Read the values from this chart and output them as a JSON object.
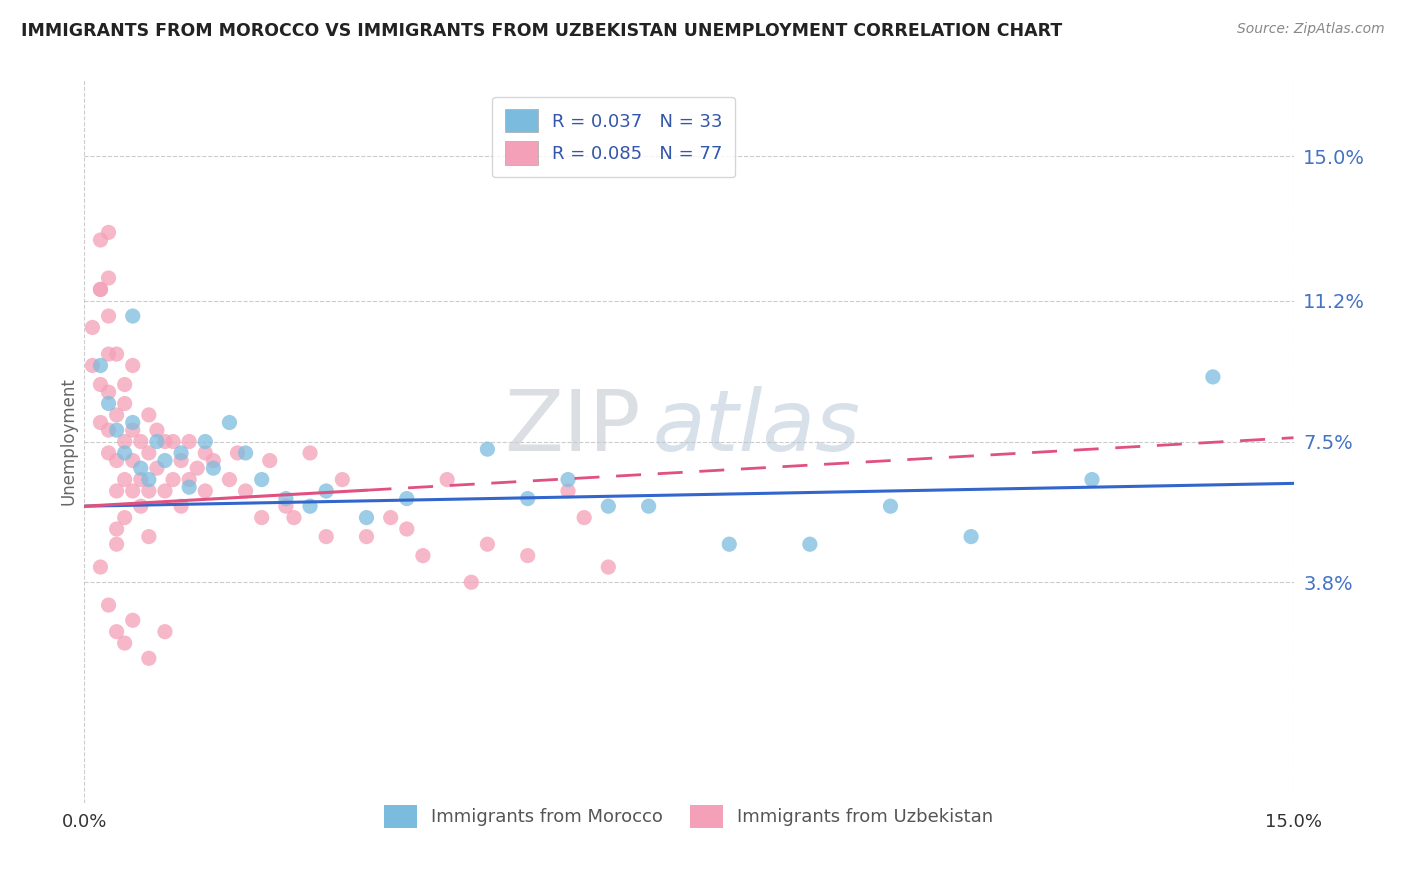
{
  "title": "IMMIGRANTS FROM MOROCCO VS IMMIGRANTS FROM UZBEKISTAN UNEMPLOYMENT CORRELATION CHART",
  "source_text": "Source: ZipAtlas.com",
  "ylabel": "Unemployment",
  "xlim": [
    0.0,
    0.15
  ],
  "ylim": [
    -0.02,
    0.17
  ],
  "yticks": [
    0.038,
    0.075,
    0.112,
    0.15
  ],
  "ytick_labels": [
    "3.8%",
    "7.5%",
    "11.2%",
    "15.0%"
  ],
  "xtick_labels": [
    "0.0%",
    "15.0%"
  ],
  "morocco_color": "#7BBCDE",
  "uzbekistan_color": "#F4A0B8",
  "morocco_line_color": "#3366CC",
  "uzbekistan_line_color": "#E05080",
  "morocco_R": 0.037,
  "morocco_N": 33,
  "uzbekistan_R": 0.085,
  "uzbekistan_N": 77,
  "watermark": "ZIPatlas",
  "legend_label_morocco": "Immigrants from Morocco",
  "legend_label_uzbekistan": "Immigrants from Uzbekistan",
  "morocco_trend": [
    0.058,
    0.064
  ],
  "uzbekistan_trend": [
    0.058,
    0.076
  ],
  "morocco_scatter": [
    [
      0.002,
      0.095
    ],
    [
      0.003,
      0.085
    ],
    [
      0.004,
      0.078
    ],
    [
      0.005,
      0.072
    ],
    [
      0.006,
      0.08
    ],
    [
      0.007,
      0.068
    ],
    [
      0.008,
      0.065
    ],
    [
      0.009,
      0.075
    ],
    [
      0.01,
      0.07
    ],
    [
      0.012,
      0.072
    ],
    [
      0.013,
      0.063
    ],
    [
      0.015,
      0.075
    ],
    [
      0.016,
      0.068
    ],
    [
      0.018,
      0.08
    ],
    [
      0.02,
      0.072
    ],
    [
      0.022,
      0.065
    ],
    [
      0.025,
      0.06
    ],
    [
      0.028,
      0.058
    ],
    [
      0.03,
      0.062
    ],
    [
      0.035,
      0.055
    ],
    [
      0.04,
      0.06
    ],
    [
      0.05,
      0.073
    ],
    [
      0.055,
      0.06
    ],
    [
      0.06,
      0.065
    ],
    [
      0.065,
      0.058
    ],
    [
      0.07,
      0.058
    ],
    [
      0.08,
      0.048
    ],
    [
      0.09,
      0.048
    ],
    [
      0.1,
      0.058
    ],
    [
      0.11,
      0.05
    ],
    [
      0.125,
      0.065
    ],
    [
      0.14,
      0.092
    ],
    [
      0.006,
      0.108
    ]
  ],
  "uzbekistan_scatter": [
    [
      0.001,
      0.105
    ],
    [
      0.001,
      0.095
    ],
    [
      0.002,
      0.115
    ],
    [
      0.002,
      0.08
    ],
    [
      0.002,
      0.09
    ],
    [
      0.003,
      0.098
    ],
    [
      0.003,
      0.088
    ],
    [
      0.003,
      0.078
    ],
    [
      0.003,
      0.072
    ],
    [
      0.004,
      0.082
    ],
    [
      0.004,
      0.07
    ],
    [
      0.004,
      0.062
    ],
    [
      0.004,
      0.052
    ],
    [
      0.005,
      0.085
    ],
    [
      0.005,
      0.075
    ],
    [
      0.005,
      0.065
    ],
    [
      0.005,
      0.055
    ],
    [
      0.006,
      0.078
    ],
    [
      0.006,
      0.07
    ],
    [
      0.006,
      0.062
    ],
    [
      0.007,
      0.075
    ],
    [
      0.007,
      0.065
    ],
    [
      0.007,
      0.058
    ],
    [
      0.008,
      0.082
    ],
    [
      0.008,
      0.072
    ],
    [
      0.008,
      0.062
    ],
    [
      0.008,
      0.05
    ],
    [
      0.009,
      0.078
    ],
    [
      0.009,
      0.068
    ],
    [
      0.01,
      0.075
    ],
    [
      0.01,
      0.062
    ],
    [
      0.011,
      0.075
    ],
    [
      0.011,
      0.065
    ],
    [
      0.012,
      0.07
    ],
    [
      0.012,
      0.058
    ],
    [
      0.013,
      0.075
    ],
    [
      0.013,
      0.065
    ],
    [
      0.014,
      0.068
    ],
    [
      0.015,
      0.072
    ],
    [
      0.015,
      0.062
    ],
    [
      0.016,
      0.07
    ],
    [
      0.018,
      0.065
    ],
    [
      0.019,
      0.072
    ],
    [
      0.02,
      0.062
    ],
    [
      0.022,
      0.055
    ],
    [
      0.023,
      0.07
    ],
    [
      0.025,
      0.058
    ],
    [
      0.026,
      0.055
    ],
    [
      0.028,
      0.072
    ],
    [
      0.03,
      0.05
    ],
    [
      0.032,
      0.065
    ],
    [
      0.035,
      0.05
    ],
    [
      0.038,
      0.055
    ],
    [
      0.04,
      0.052
    ],
    [
      0.042,
      0.045
    ],
    [
      0.045,
      0.065
    ],
    [
      0.048,
      0.038
    ],
    [
      0.05,
      0.048
    ],
    [
      0.055,
      0.045
    ],
    [
      0.06,
      0.062
    ],
    [
      0.062,
      0.055
    ],
    [
      0.065,
      0.042
    ],
    [
      0.002,
      0.128
    ],
    [
      0.002,
      0.115
    ],
    [
      0.003,
      0.108
    ],
    [
      0.004,
      0.098
    ],
    [
      0.005,
      0.09
    ],
    [
      0.006,
      0.095
    ],
    [
      0.002,
      0.042
    ],
    [
      0.003,
      0.032
    ],
    [
      0.004,
      0.025
    ],
    [
      0.005,
      0.022
    ],
    [
      0.006,
      0.028
    ],
    [
      0.008,
      0.018
    ],
    [
      0.01,
      0.025
    ],
    [
      0.003,
      0.13
    ],
    [
      0.003,
      0.118
    ],
    [
      0.004,
      0.048
    ]
  ]
}
